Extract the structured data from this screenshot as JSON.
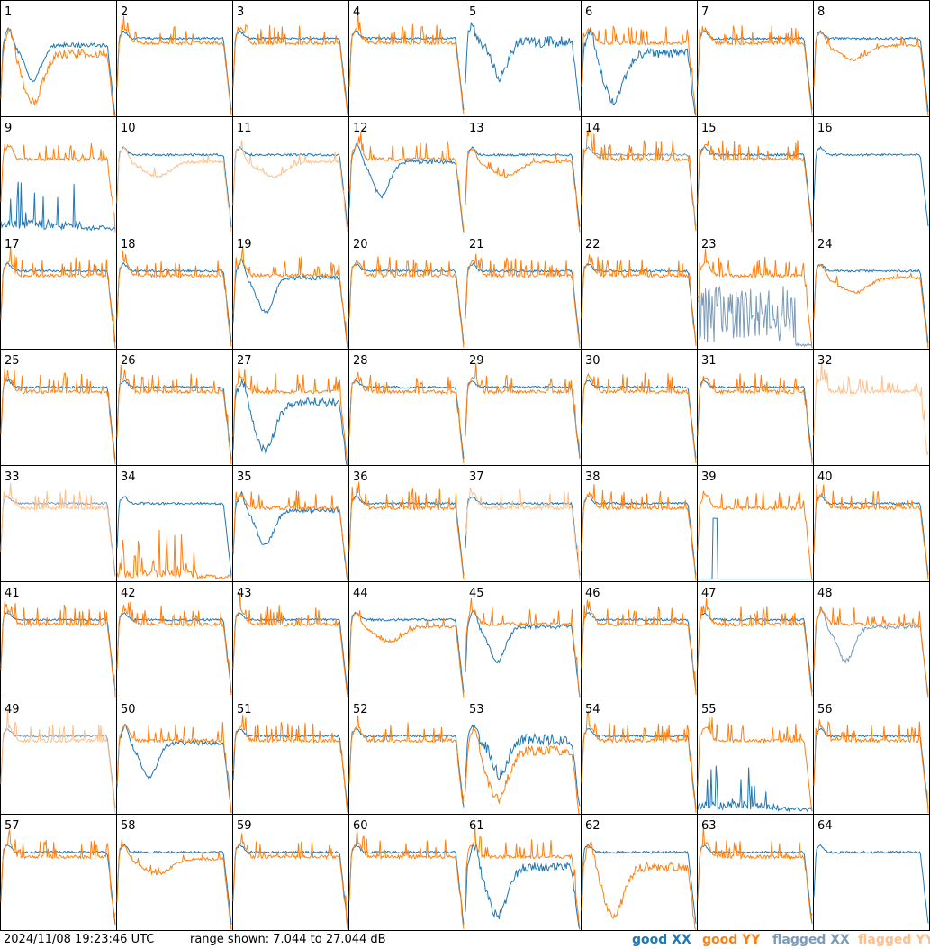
{
  "chart_data": {
    "type": "line",
    "panels": [
      {
        "n": "1",
        "xx": "good",
        "yy": "good",
        "xx_shape": "dip",
        "yy_shape": "deep_dip"
      },
      {
        "n": "2",
        "xx": "good",
        "yy": "good",
        "xx_shape": "flat",
        "yy_shape": "flat_spiky"
      },
      {
        "n": "3",
        "xx": "good",
        "yy": "good",
        "xx_shape": "flat",
        "yy_shape": "flat_spiky"
      },
      {
        "n": "4",
        "xx": "good",
        "yy": "good",
        "xx_shape": "flat",
        "yy_shape": "flat_spiky"
      },
      {
        "n": "5",
        "xx": "good",
        "yy": "flagged",
        "xx_shape": "bumpy",
        "yy_shape": "none"
      },
      {
        "n": "6",
        "xx": "good",
        "yy": "good",
        "xx_shape": "deep_dip",
        "yy_shape": "flat_spiky"
      },
      {
        "n": "7",
        "xx": "good",
        "yy": "good",
        "xx_shape": "flat",
        "yy_shape": "flat_spiky"
      },
      {
        "n": "8",
        "xx": "good",
        "yy": "good",
        "xx_shape": "flat",
        "yy_shape": "shallow_dip"
      },
      {
        "n": "9",
        "xx": "good",
        "yy": "good",
        "xx_shape": "noise_low",
        "yy_shape": "flat_spiky"
      },
      {
        "n": "10",
        "xx": "good",
        "yy": "flagged",
        "xx_shape": "flat",
        "yy_shape": "shallow_dip"
      },
      {
        "n": "11",
        "xx": "good",
        "yy": "flagged",
        "xx_shape": "flat",
        "yy_shape": "shallow_dip"
      },
      {
        "n": "12",
        "xx": "good",
        "yy": "good",
        "xx_shape": "dip",
        "yy_shape": "flat_spiky"
      },
      {
        "n": "13",
        "xx": "good",
        "yy": "good",
        "xx_shape": "flat",
        "yy_shape": "shallow_dip"
      },
      {
        "n": "14",
        "xx": "flagged",
        "yy": "good",
        "xx_shape": "flat",
        "yy_shape": "flat_spiky"
      },
      {
        "n": "15",
        "xx": "good",
        "yy": "good",
        "xx_shape": "flat",
        "yy_shape": "flat_spiky"
      },
      {
        "n": "16",
        "xx": "good",
        "yy": "flagged",
        "xx_shape": "flat",
        "yy_shape": "none"
      },
      {
        "n": "17",
        "xx": "good",
        "yy": "good",
        "xx_shape": "flat",
        "yy_shape": "flat_spiky"
      },
      {
        "n": "18",
        "xx": "good",
        "yy": "good",
        "xx_shape": "flat",
        "yy_shape": "flat_spiky"
      },
      {
        "n": "19",
        "xx": "good",
        "yy": "good",
        "xx_shape": "dip",
        "yy_shape": "flat_spiky"
      },
      {
        "n": "20",
        "xx": "good",
        "yy": "good",
        "xx_shape": "flat",
        "yy_shape": "flat_spiky"
      },
      {
        "n": "21",
        "xx": "good",
        "yy": "good",
        "xx_shape": "flat",
        "yy_shape": "flat_spiky"
      },
      {
        "n": "22",
        "xx": "good",
        "yy": "good",
        "xx_shape": "flat",
        "yy_shape": "flat_spiky"
      },
      {
        "n": "23",
        "xx": "flagged",
        "yy": "good",
        "xx_shape": "noise_mid",
        "yy_shape": "flat_spiky"
      },
      {
        "n": "24",
        "xx": "good",
        "yy": "good",
        "xx_shape": "flat",
        "yy_shape": "shallow_dip"
      },
      {
        "n": "25",
        "xx": "good",
        "yy": "good",
        "xx_shape": "flat",
        "yy_shape": "flat_spiky"
      },
      {
        "n": "26",
        "xx": "good",
        "yy": "good",
        "xx_shape": "flat",
        "yy_shape": "flat_spiky"
      },
      {
        "n": "27",
        "xx": "good",
        "yy": "good",
        "xx_shape": "deep_dip",
        "yy_shape": "flat_spiky"
      },
      {
        "n": "28",
        "xx": "good",
        "yy": "good",
        "xx_shape": "flat",
        "yy_shape": "flat_spiky"
      },
      {
        "n": "29",
        "xx": "good",
        "yy": "good",
        "xx_shape": "flat",
        "yy_shape": "flat_spiky"
      },
      {
        "n": "30",
        "xx": "good",
        "yy": "good",
        "xx_shape": "flat",
        "yy_shape": "flat_spiky"
      },
      {
        "n": "31",
        "xx": "good",
        "yy": "good",
        "xx_shape": "flat",
        "yy_shape": "flat_spiky"
      },
      {
        "n": "32",
        "xx": "flagged",
        "yy": "flagged",
        "xx_shape": "none",
        "yy_shape": "flat_spiky"
      },
      {
        "n": "33",
        "xx": "flagged",
        "yy": "flagged",
        "xx_shape": "flat",
        "yy_shape": "flat_spiky"
      },
      {
        "n": "34",
        "xx": "good",
        "yy": "good",
        "xx_shape": "flat",
        "yy_shape": "noise_low"
      },
      {
        "n": "35",
        "xx": "good",
        "yy": "good",
        "xx_shape": "dip",
        "yy_shape": "flat_spiky"
      },
      {
        "n": "36",
        "xx": "good",
        "yy": "good",
        "xx_shape": "flat",
        "yy_shape": "flat_spiky"
      },
      {
        "n": "37",
        "xx": "good",
        "yy": "flagged",
        "xx_shape": "flat",
        "yy_shape": "flat_spiky"
      },
      {
        "n": "38",
        "xx": "good",
        "yy": "good",
        "xx_shape": "flat",
        "yy_shape": "flat_spiky"
      },
      {
        "n": "39",
        "xx": "good",
        "yy": "good",
        "xx_shape": "spike_single",
        "yy_shape": "flat_spiky"
      },
      {
        "n": "40",
        "xx": "good",
        "yy": "good",
        "xx_shape": "flat",
        "yy_shape": "flat_spiky"
      },
      {
        "n": "41",
        "xx": "good",
        "yy": "good",
        "xx_shape": "flat",
        "yy_shape": "flat_spiky"
      },
      {
        "n": "42",
        "xx": "good",
        "yy": "good",
        "xx_shape": "flat",
        "yy_shape": "flat_spiky"
      },
      {
        "n": "43",
        "xx": "good",
        "yy": "good",
        "xx_shape": "flat",
        "yy_shape": "flat_spiky"
      },
      {
        "n": "44",
        "xx": "good",
        "yy": "good",
        "xx_shape": "flat",
        "yy_shape": "shallow_dip"
      },
      {
        "n": "45",
        "xx": "good",
        "yy": "good",
        "xx_shape": "dip",
        "yy_shape": "flat_spiky"
      },
      {
        "n": "46",
        "xx": "good",
        "yy": "good",
        "xx_shape": "flat",
        "yy_shape": "flat_spiky"
      },
      {
        "n": "47",
        "xx": "good",
        "yy": "good",
        "xx_shape": "flat",
        "yy_shape": "flat_spiky"
      },
      {
        "n": "48",
        "xx": "flagged",
        "yy": "good",
        "xx_shape": "dip",
        "yy_shape": "flat_spiky"
      },
      {
        "n": "49",
        "xx": "flagged",
        "yy": "flagged",
        "xx_shape": "flat",
        "yy_shape": "flat_spiky"
      },
      {
        "n": "50",
        "xx": "good",
        "yy": "good",
        "xx_shape": "dip",
        "yy_shape": "flat_spiky"
      },
      {
        "n": "51",
        "xx": "good",
        "yy": "good",
        "xx_shape": "flat",
        "yy_shape": "flat_spiky"
      },
      {
        "n": "52",
        "xx": "good",
        "yy": "good",
        "xx_shape": "flat",
        "yy_shape": "flat_spiky"
      },
      {
        "n": "53",
        "xx": "good",
        "yy": "good",
        "xx_shape": "bumpy",
        "yy_shape": "deep_dip"
      },
      {
        "n": "54",
        "xx": "good",
        "yy": "good",
        "xx_shape": "flat",
        "yy_shape": "flat_spiky"
      },
      {
        "n": "55",
        "xx": "good",
        "yy": "good",
        "xx_shape": "noise_low",
        "yy_shape": "flat_spiky"
      },
      {
        "n": "56",
        "xx": "good",
        "yy": "good",
        "xx_shape": "flat",
        "yy_shape": "flat_spiky"
      },
      {
        "n": "57",
        "xx": "good",
        "yy": "good",
        "xx_shape": "flat",
        "yy_shape": "flat_spiky"
      },
      {
        "n": "58",
        "xx": "good",
        "yy": "good",
        "xx_shape": "flat",
        "yy_shape": "shallow_dip"
      },
      {
        "n": "59",
        "xx": "good",
        "yy": "good",
        "xx_shape": "flat",
        "yy_shape": "flat_spiky"
      },
      {
        "n": "60",
        "xx": "good",
        "yy": "good",
        "xx_shape": "flat",
        "yy_shape": "flat_spiky"
      },
      {
        "n": "61",
        "xx": "good",
        "yy": "good",
        "xx_shape": "deep_dip",
        "yy_shape": "flat_spiky"
      },
      {
        "n": "62",
        "xx": "good",
        "yy": "good",
        "xx_shape": "flat",
        "yy_shape": "deep_dip"
      },
      {
        "n": "63",
        "xx": "good",
        "yy": "good",
        "xx_shape": "flat",
        "yy_shape": "flat_spiky"
      },
      {
        "n": "64",
        "xx": "good",
        "yy": "flagged",
        "xx_shape": "flat",
        "yy_shape": "none"
      }
    ],
    "ylim": [
      7.044,
      27.044
    ],
    "grid": false,
    "columns": 8,
    "rows": 8
  },
  "footer": {
    "timestamp": "2024/11/08 19:23:46 UTC",
    "range": "range shown: 7.044 to 27.044 dB"
  },
  "legend": {
    "good_xx": "good XX",
    "good_yy": "good YY",
    "flagged_xx": "flagged XX",
    "flagged_yy": "flagged YY"
  },
  "colors": {
    "good_xx": "#1f77b4",
    "good_yy": "#ff7f0e",
    "flagged_xx": "#7b9bb8",
    "flagged_yy": "#ffbf8a"
  }
}
